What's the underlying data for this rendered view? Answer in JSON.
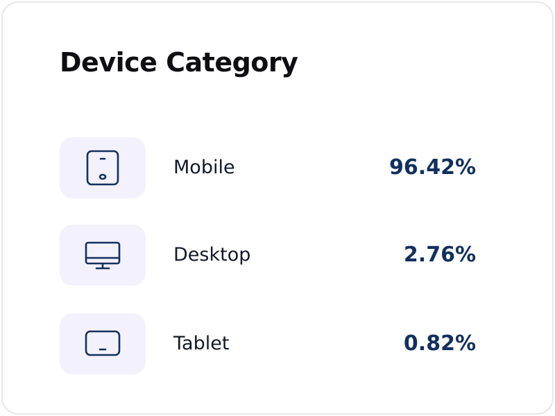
{
  "card": {
    "title": "Device Category"
  },
  "devices": [
    {
      "label": "Mobile",
      "value": "96.42%",
      "icon": "mobile-icon"
    },
    {
      "label": "Desktop",
      "value": "2.76%",
      "icon": "desktop-icon"
    },
    {
      "label": "Tablet",
      "value": "0.82%",
      "icon": "tablet-icon"
    }
  ],
  "colors": {
    "icon_stroke": "#12305e",
    "icon_background": "#f3f1fc",
    "value_text": "#12305e",
    "card_border": "#e7e6ef"
  }
}
